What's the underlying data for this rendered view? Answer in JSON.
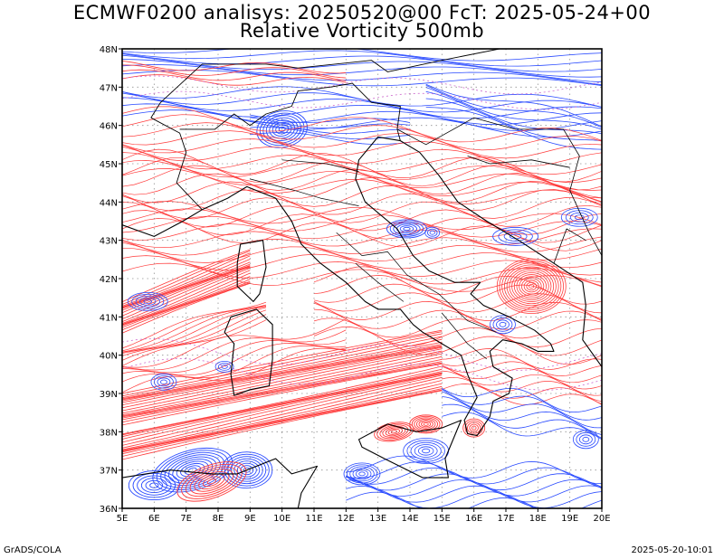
{
  "title": {
    "line1": "ECMWF0200 analisys: 20250520@00 FcT: 2025-05-24+00",
    "line2": "Relative Vorticity 500mb"
  },
  "footer": {
    "left": "GrADS/COLA",
    "right": "2025-05-20-10:01"
  },
  "map": {
    "lon_range": [
      5,
      20
    ],
    "lat_range": [
      36,
      48
    ],
    "lon_labels": [
      "5E",
      "6E",
      "7E",
      "8E",
      "9E",
      "10E",
      "11E",
      "12E",
      "13E",
      "14E",
      "15E",
      "16E",
      "17E",
      "18E",
      "19E",
      "20E"
    ],
    "lat_labels": [
      "36N",
      "37N",
      "38N",
      "39N",
      "40N",
      "41N",
      "42N",
      "43N",
      "44N",
      "45N",
      "46N",
      "47N",
      "48N"
    ],
    "colors": {
      "positive_vorticity": "#ff3b3b",
      "negative_vorticity": "#2a4bff",
      "zero_contour": "#cc66cc",
      "coastline": "#000000",
      "grid": "#666666"
    }
  }
}
